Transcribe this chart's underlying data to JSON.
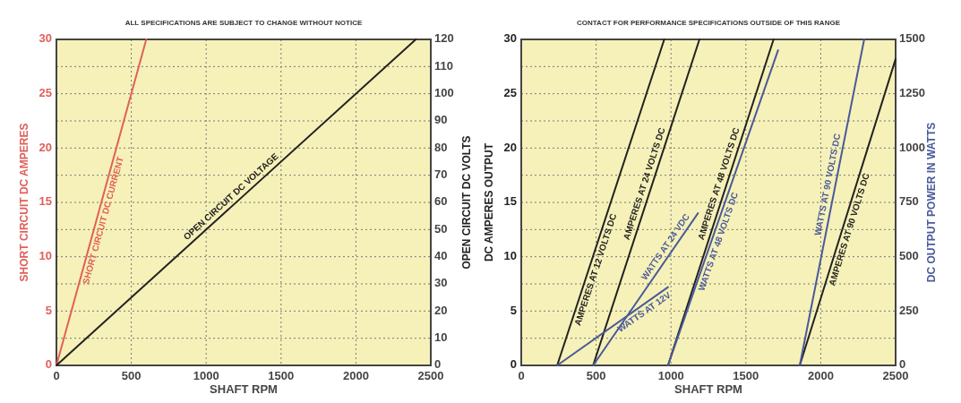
{
  "chart_data": [
    {
      "type": "line",
      "title": "ALL SPECIFICATIONS ARE SUBJECT TO CHANGE WITHOUT NOTICE",
      "xlabel": "SHAFT RPM",
      "ylabel": "SHORT CIRCUIT DC AMPERES",
      "y2label": "OPEN CIRCUIT DC VOLTS",
      "xlim": [
        0,
        2500
      ],
      "xticks": [
        0,
        500,
        1000,
        1500,
        2000,
        2500
      ],
      "ylim": [
        0,
        30
      ],
      "yticks": [
        0,
        {
          "value": 2.5,
          "label": null
        },
        5,
        {
          "value": 7.5,
          "label": null
        },
        10,
        {
          "value": 12.5,
          "label": null
        },
        15,
        {
          "value": 17.5,
          "label": null
        },
        20,
        {
          "value": 22.5,
          "label": null
        },
        25,
        {
          "value": 27.5,
          "label": null
        },
        30
      ],
      "y2lim": [
        0,
        120
      ],
      "y2ticks": [
        0,
        10,
        20,
        30,
        40,
        50,
        60,
        70,
        80,
        90,
        100,
        110,
        120
      ],
      "grid": true,
      "marker": "none",
      "line_style": "solid",
      "series": [
        {
          "name": "SHORT CIRCUIT DC CURRENT",
          "color": "#e0605a",
          "x": [
            0,
            600
          ],
          "values": [
            0,
            30
          ]
        },
        {
          "name": "OPEN CIRCUIT DC VOLTAGE",
          "color": "#222222",
          "axis": "y2",
          "x": [
            0,
            2400
          ],
          "values": [
            0,
            120
          ]
        }
      ]
    },
    {
      "type": "line",
      "title": "CONTACT FOR PERFORMANCE SPECIFICATIONS OUTSIDE OF THIS RANGE",
      "xlabel": "SHAFT RPM",
      "ylabel": "DC AMPERES OUTPUT",
      "y2label": "DC OUTPUT POWER IN WATTS",
      "xlim": [
        0,
        2500
      ],
      "xticks": [
        0,
        500,
        1000,
        1500,
        2000,
        2500
      ],
      "ylim": [
        0,
        30
      ],
      "yticks": [
        0,
        {
          "value": 2.5,
          "label": null
        },
        5,
        {
          "value": 7.5,
          "label": null
        },
        10,
        {
          "value": 12.5,
          "label": null
        },
        15,
        {
          "value": 17.5,
          "label": null
        },
        20,
        {
          "value": 22.5,
          "label": null
        },
        25,
        {
          "value": 27.5,
          "label": null
        },
        30
      ],
      "y2lim": [
        0,
        1500
      ],
      "y2ticks": [
        0,
        250,
        500,
        750,
        1000,
        1250,
        1500
      ],
      "grid": true,
      "marker": "none",
      "line_style": "solid",
      "series": [
        {
          "name": "AMPERES AT 12 VOLTS DC",
          "color": "#222222",
          "x": [
            240,
            955
          ],
          "values": [
            0,
            30
          ]
        },
        {
          "name": "AMPERES AT 24 VOLTS DC",
          "color": "#222222",
          "x": [
            480,
            1190
          ],
          "values": [
            0,
            30
          ]
        },
        {
          "name": "AMPERES AT 48 VOLTS DC",
          "color": "#222222",
          "x": [
            980,
            1685
          ],
          "values": [
            0,
            30
          ]
        },
        {
          "name": "AMPERES AT 90 VOLTS DC",
          "color": "#222222",
          "x": [
            1860,
            2500
          ],
          "values": [
            0,
            28.2
          ]
        },
        {
          "name": "WATTS AT 12V",
          "color": "#4a5a9a",
          "axis": "y2",
          "x": [
            240,
            980
          ],
          "values": [
            0,
            360
          ]
        },
        {
          "name": "WATTS AT 24 VDC",
          "color": "#4a5a9a",
          "axis": "y2",
          "x": [
            480,
            1180
          ],
          "values": [
            0,
            700
          ]
        },
        {
          "name": "WATTS AT 48 VOLTS DC",
          "color": "#4a5a9a",
          "axis": "y2",
          "x": [
            980,
            1715
          ],
          "values": [
            0,
            1450
          ]
        },
        {
          "name": "WATTS AT 90 VOLTS DC",
          "color": "#4a5a9a",
          "axis": "y2",
          "x": [
            1860,
            2290
          ],
          "values": [
            0,
            1500
          ]
        }
      ]
    }
  ]
}
